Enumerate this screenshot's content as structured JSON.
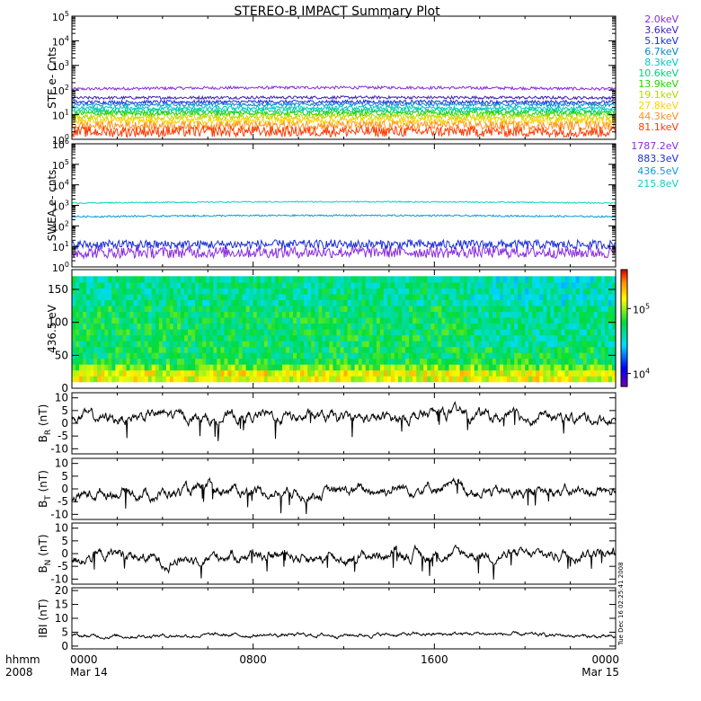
{
  "title": "STEREO-B IMPACT Summary Plot",
  "footer": {
    "left_line1": "hhmm",
    "left_line2": "2008",
    "ticks": [
      {
        "time": "0000",
        "date": "Mar 14",
        "hour": 0
      },
      {
        "time": "0800",
        "date": "",
        "hour": 8
      },
      {
        "time": "1600",
        "date": "",
        "hour": 16
      },
      {
        "time": "0000",
        "date": "Mar 15",
        "hour": 24
      }
    ]
  },
  "stamp": "Tue Dec 16 02:25:41 2008",
  "chart_data": [
    {
      "id": "ste",
      "type": "line",
      "ylabel": "STE e- Cnts",
      "yscale": "log",
      "ylim_exp": [
        0,
        5
      ],
      "x_hours": [
        0,
        24
      ],
      "series": [
        {
          "name": "2.0keV",
          "color": "#8a2be2",
          "level": 110,
          "noise": 0.06
        },
        {
          "name": "3.6keV",
          "color": "#3a1fb5",
          "level": 48,
          "noise": 0.06
        },
        {
          "name": "5.1keV",
          "color": "#1a2ed8",
          "level": 32,
          "noise": 0.07
        },
        {
          "name": "6.7keV",
          "color": "#0a86cf",
          "level": 25,
          "noise": 0.07
        },
        {
          "name": "8.3keV",
          "color": "#00c7c7",
          "level": 18,
          "noise": 0.08
        },
        {
          "name": "10.6keV",
          "color": "#00cf80",
          "level": 14,
          "noise": 0.09
        },
        {
          "name": "13.9keV",
          "color": "#22d400",
          "level": 11,
          "noise": 0.1
        },
        {
          "name": "19.1keV",
          "color": "#b8d800",
          "level": 8,
          "noise": 0.12
        },
        {
          "name": "27.8keV",
          "color": "#ffd000",
          "level": 5.5,
          "noise": 0.15
        },
        {
          "name": "44.3keV",
          "color": "#ff9020",
          "level": 3.5,
          "noise": 0.18
        },
        {
          "name": "81.1keV",
          "color": "#ff3a00",
          "level": 2.0,
          "noise": 0.22
        }
      ]
    },
    {
      "id": "swea",
      "type": "line",
      "ylabel": "SWEA e- cnts",
      "yscale": "log",
      "ylim_exp": [
        0,
        6
      ],
      "x_hours": [
        0,
        24
      ],
      "series": [
        {
          "name": "1787.2eV",
          "color": "#8a2be2",
          "level": 5,
          "noise": 0.28
        },
        {
          "name": "883.3eV",
          "color": "#1a2ed8",
          "level": 12,
          "noise": 0.22
        },
        {
          "name": "436.5eV",
          "color": "#0a9ad8",
          "level": 280,
          "noise": 0.04
        },
        {
          "name": "215.8eV",
          "color": "#10d0c0",
          "level": 1300,
          "noise": 0.03
        }
      ]
    },
    {
      "id": "pad",
      "type": "heatmap",
      "ylabel": "436.5 eV",
      "yticks": [
        0,
        50,
        100,
        150
      ],
      "ylim": [
        0,
        180
      ],
      "x_hours": [
        0,
        24
      ],
      "colorbar": {
        "ticks": [
          "10^5",
          "10^4"
        ],
        "range_exp": [
          3.8,
          5.6
        ]
      }
    },
    {
      "id": "br",
      "type": "line",
      "ylabel": "B_R (nT)",
      "ylabel_main": "B",
      "ylabel_sub": "R",
      "ylabel_unit": "(nT)",
      "yticks": [
        10,
        5,
        0,
        -5,
        -10
      ],
      "ylim": [
        -12,
        12
      ],
      "x_hours": [
        0,
        24
      ],
      "segments": [
        [
          0,
          2.5
        ],
        [
          2,
          2.0
        ],
        [
          4,
          3.5
        ],
        [
          6,
          1.5
        ],
        [
          8,
          3.0
        ],
        [
          10,
          2.5
        ],
        [
          12,
          1.5
        ],
        [
          14,
          2.0
        ],
        [
          16,
          3.5
        ],
        [
          17,
          4.0
        ],
        [
          19,
          2.0
        ],
        [
          21,
          2.5
        ],
        [
          23,
          2.0
        ],
        [
          24,
          1.0
        ]
      ]
    },
    {
      "id": "bt",
      "type": "line",
      "ylabel": "B_T (nT)",
      "ylabel_main": "B",
      "ylabel_sub": "T",
      "ylabel_unit": "(nT)",
      "yticks": [
        10,
        5,
        0,
        -5,
        -10
      ],
      "ylim": [
        -12,
        12
      ],
      "x_hours": [
        0,
        24
      ],
      "segments": [
        [
          0,
          -3
        ],
        [
          2,
          -1
        ],
        [
          4,
          -2
        ],
        [
          6,
          0
        ],
        [
          8,
          -1
        ],
        [
          10,
          -2
        ],
        [
          12,
          -1
        ],
        [
          14,
          0
        ],
        [
          16,
          1
        ],
        [
          18,
          -1
        ],
        [
          20,
          -2
        ],
        [
          22,
          -1
        ],
        [
          24,
          -1
        ]
      ]
    },
    {
      "id": "bn",
      "type": "line",
      "ylabel": "B_N (nT)",
      "ylabel_main": "B",
      "ylabel_sub": "N",
      "ylabel_unit": "(nT)",
      "yticks": [
        10,
        5,
        0,
        -5,
        -10
      ],
      "ylim": [
        -12,
        12
      ],
      "x_hours": [
        0,
        24
      ],
      "segments": [
        [
          0,
          -2
        ],
        [
          2,
          0
        ],
        [
          4,
          -3
        ],
        [
          6,
          -1
        ],
        [
          8,
          0
        ],
        [
          10,
          -1
        ],
        [
          12,
          -2
        ],
        [
          14,
          0
        ],
        [
          16,
          -1
        ],
        [
          18,
          0
        ],
        [
          20,
          -1
        ],
        [
          22,
          0
        ],
        [
          24,
          1
        ]
      ]
    },
    {
      "id": "bmag",
      "type": "line",
      "ylabel": "|B| (nT)",
      "ylabel_main": "IBI",
      "ylabel_sub": "",
      "ylabel_unit": "(nT)",
      "yticks": [
        20,
        15,
        10,
        5,
        0
      ],
      "ylim": [
        -1,
        21
      ],
      "x_hours": [
        0,
        24
      ],
      "segments": [
        [
          0,
          3.5
        ],
        [
          4,
          3.8
        ],
        [
          8,
          3.9
        ],
        [
          12,
          4.0
        ],
        [
          16,
          4.2
        ],
        [
          18,
          4.5
        ],
        [
          20,
          4.0
        ],
        [
          22,
          3.8
        ],
        [
          24,
          3.0
        ]
      ]
    }
  ]
}
